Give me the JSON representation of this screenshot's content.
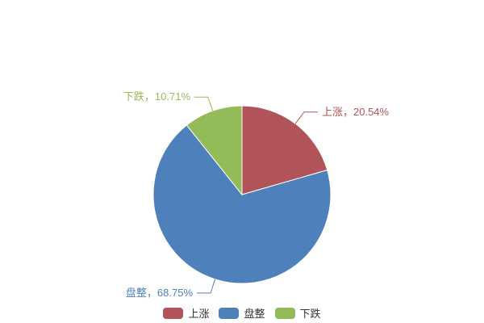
{
  "chart_data": {
    "type": "pie",
    "title": "",
    "categories": [
      "上涨",
      "盘整",
      "下跌"
    ],
    "values": [
      20.54,
      68.75,
      10.71
    ],
    "unit": "%",
    "colors": [
      "#b1545a",
      "#4e80bc",
      "#93bb57"
    ],
    "labels": [
      "上涨，20.54%",
      "盘整，68.75%",
      "下跌，10.71%"
    ],
    "legend": [
      "上涨",
      "盘整",
      "下跌"
    ],
    "legend_position": "bottom-center",
    "start_angle_deg": 0,
    "direction": "clockwise",
    "label_position": "outside-with-leader-line",
    "background": "#ffffff",
    "legend_text_color": "#333333"
  }
}
